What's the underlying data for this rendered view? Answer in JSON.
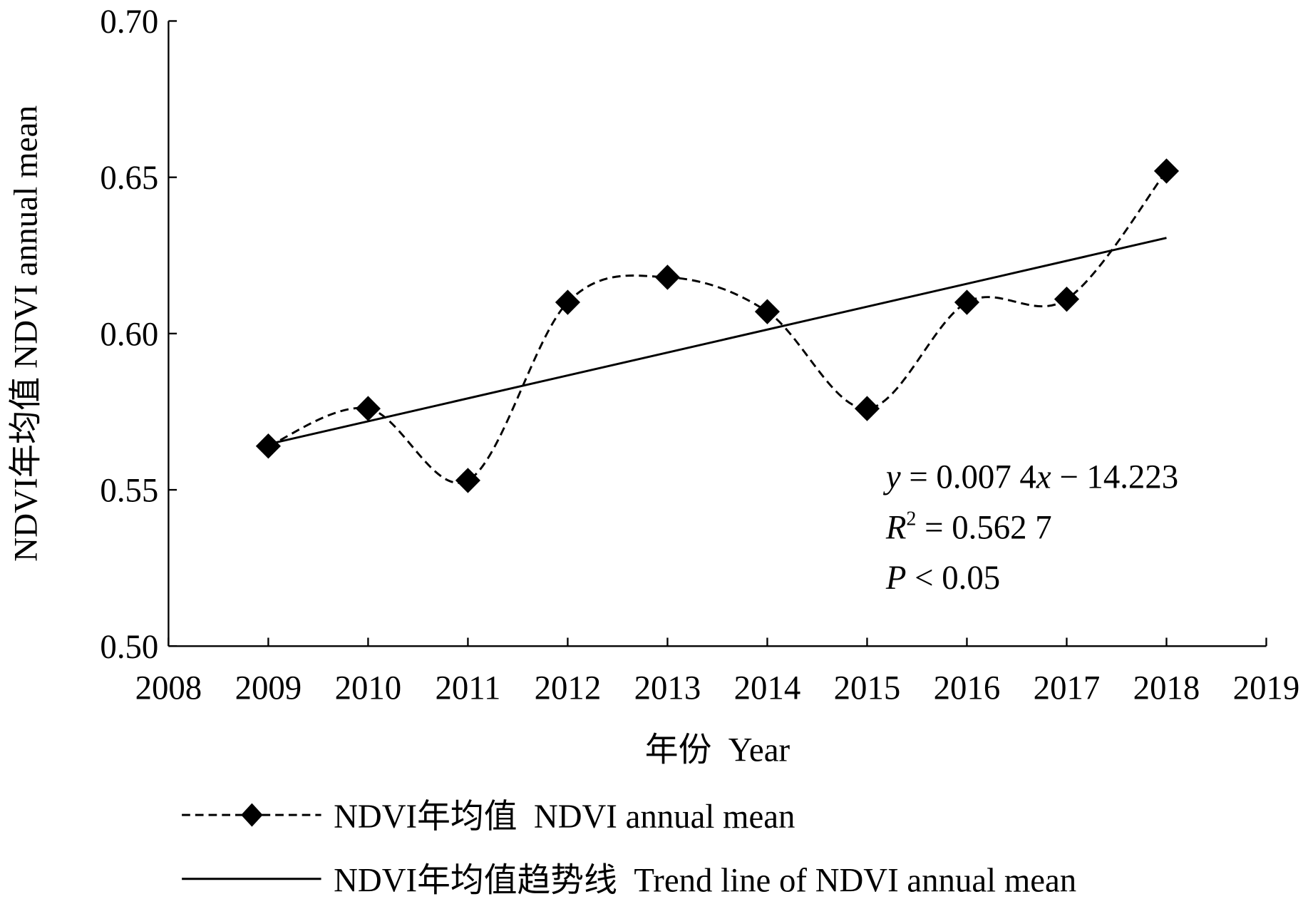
{
  "chart_data": {
    "type": "line",
    "title": "",
    "xlabel": "年份  Year",
    "ylabel": "NDVI年均值  NDVI annual mean",
    "xlim": [
      2008,
      2019
    ],
    "ylim": [
      0.5,
      0.7
    ],
    "x_ticks": [
      2008,
      2009,
      2010,
      2011,
      2012,
      2013,
      2014,
      2015,
      2016,
      2017,
      2018,
      2019
    ],
    "y_ticks": [
      "0.50",
      "0.55",
      "0.60",
      "0.65",
      "0.70"
    ],
    "grid": false,
    "series": [
      {
        "name": "NDVI年均值  NDVI annual mean",
        "style": "dashed smooth with diamond markers",
        "x": [
          2009,
          2010,
          2011,
          2012,
          2013,
          2014,
          2015,
          2016,
          2017,
          2018
        ],
        "values": [
          0.564,
          0.576,
          0.553,
          0.61,
          0.618,
          0.607,
          0.576,
          0.61,
          0.611,
          0.652
        ]
      },
      {
        "name": "NDVI年均值趋势线  Trend line of NDVI annual mean",
        "style": "solid",
        "x": [
          2009,
          2018
        ],
        "values": [
          0.5646,
          0.6306
        ]
      }
    ],
    "annotations": {
      "equation_y": "y",
      "equation_rest": " = 0.007 4",
      "equation_x": "x",
      "equation_tail": " − 14.223",
      "r2_label": "R",
      "r2_sup": "2",
      "r2_value": " = 0.562 7",
      "p_label": "P",
      "p_value": " < 0.05"
    },
    "legend_position": "bottom"
  }
}
